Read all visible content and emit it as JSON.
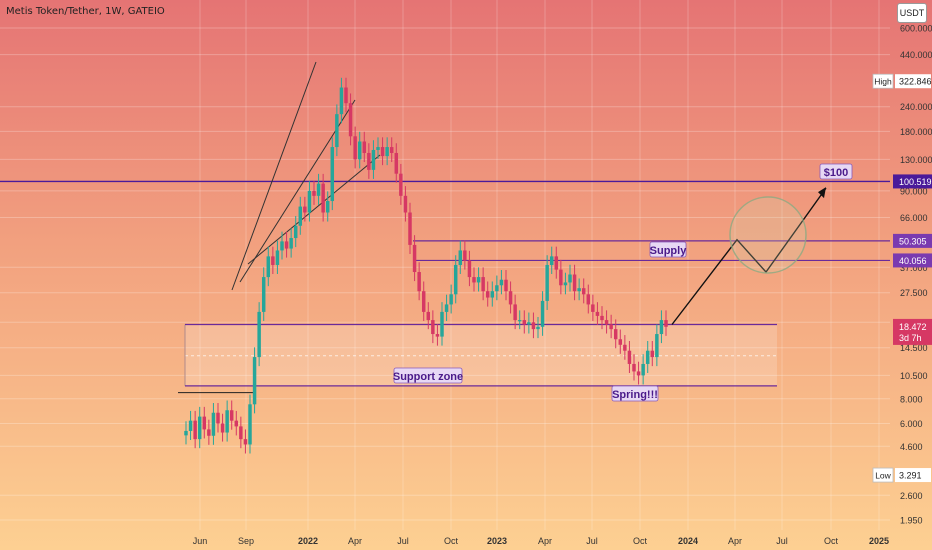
{
  "header": {
    "symbol_title": "Metis Token/Tether, 1W, GATEIO",
    "currency_button": "USDT"
  },
  "chart_data": {
    "type": "candlestick",
    "title": "Metis Token/Tether, 1W, GATEIO",
    "scale": "log",
    "y_axis_ticks": [
      "600.000",
      "440.000",
      "240.000",
      "180.000",
      "130.000",
      "90.000",
      "66.000",
      "37.000",
      "27.500",
      "19.500",
      "14.500",
      "10.500",
      "8.000",
      "6.000",
      "4.600",
      "2.600",
      "1.950"
    ],
    "x_axis_ticks": [
      "Jun",
      "Sep",
      "2022",
      "Apr",
      "Jul",
      "Oct",
      "2023",
      "Apr",
      "Jul",
      "Oct",
      "2024",
      "Apr",
      "Jul",
      "Oct",
      "2025"
    ],
    "price_labels": [
      {
        "kind": "high-marker",
        "label": "High",
        "value": "322.846"
      },
      {
        "kind": "level",
        "value": "100.519",
        "color": "#4a1a9a"
      },
      {
        "kind": "level",
        "value": "50.305",
        "color": "#7a3ab0"
      },
      {
        "kind": "level",
        "value": "40.056",
        "color": "#7a3ab0"
      },
      {
        "kind": "last-price",
        "value": "18.472",
        "countdown": "3d 7h",
        "color": "#d63864"
      },
      {
        "kind": "low-marker",
        "label": "Low",
        "value": "3.291"
      }
    ],
    "annotations": [
      {
        "text": "$100"
      },
      {
        "text": "Supply"
      },
      {
        "text": "Support zone"
      },
      {
        "text": "Spring!!!"
      }
    ],
    "colors": {
      "up": "#26a69a",
      "down": "#d63864",
      "level": "#6a2a9a",
      "background_top": "#e57676",
      "background_bottom": "#fccd90"
    },
    "approx_weekly_closes": [
      5.5,
      6.2,
      5.0,
      6.5,
      5.6,
      5.2,
      6.8,
      6.0,
      5.4,
      7.0,
      6.2,
      5.8,
      5.0,
      4.7,
      7.5,
      13.0,
      22.0,
      33.0,
      42.0,
      38.0,
      45.0,
      50.0,
      46.0,
      52.0,
      60.0,
      75.0,
      70.0,
      90.0,
      85.0,
      98.0,
      70.0,
      80.0,
      150.0,
      220.0,
      300.0,
      250.0,
      170.0,
      130.0,
      160.0,
      140.0,
      115.0,
      145.0,
      150.0,
      135.0,
      150.0,
      140.0,
      110.0,
      85.0,
      70.0,
      48.0,
      35.0,
      28.0,
      22.0,
      20.0,
      17.0,
      16.5,
      22.0,
      24.0,
      27.0,
      38.0,
      45.0,
      40.0,
      33.0,
      31.0,
      33.0,
      28.0,
      26.0,
      28.0,
      30.0,
      32.0,
      28.0,
      24.0,
      20.0,
      20.0,
      19.0,
      19.5,
      18.0,
      18.5,
      25.0,
      38.0,
      42.0,
      36.0,
      30.0,
      31.0,
      34.0,
      28.0,
      29.0,
      27.0,
      24.0,
      22.0,
      21.0,
      20.0,
      19.0,
      18.0,
      16.0,
      15.0,
      14.0,
      12.0,
      11.0,
      10.5,
      12.0,
      14.0,
      13.0,
      17.0,
      20.0,
      18.5
    ]
  }
}
